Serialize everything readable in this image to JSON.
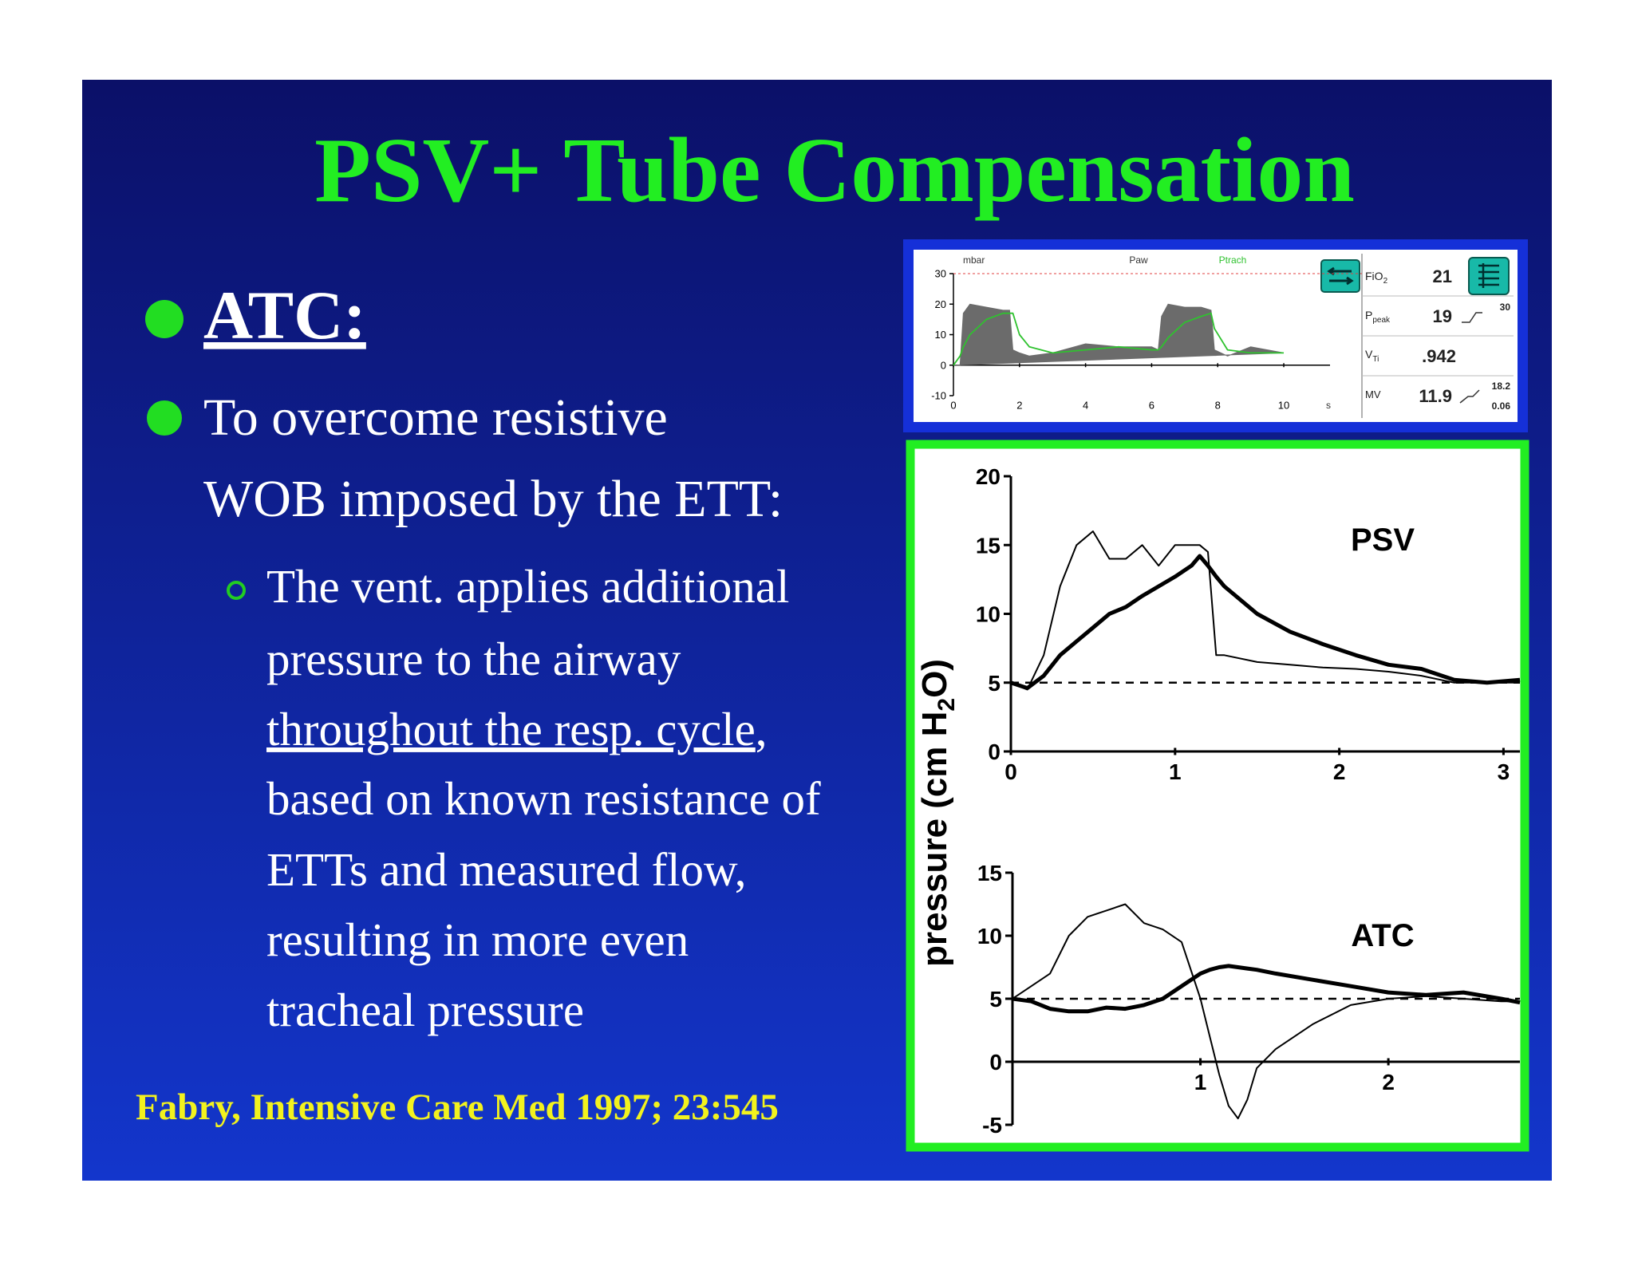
{
  "title": "PSV+ Tube Compensation",
  "bullets": [
    "ATC:",
    [
      "To overcome resistive",
      "WOB imposed by the ETT:"
    ]
  ],
  "sub_bullet": [
    "The vent. applies additional",
    "pressure to the airway",
    {
      "underlined": "throughout the resp. cycle",
      "after": ","
    },
    "based on known resistance of",
    "ETTs and measured flow,",
    "resulting in more even",
    "tracheal pressure"
  ],
  "citation": "Fabry, Intensive Care Med 1997; 23:545",
  "y_axis_label": {
    "before": "pressure (cm H",
    "sub": "2",
    "after": "O)"
  },
  "monitor": {
    "readouts": [
      {
        "label": "FiO",
        "sub": "2",
        "value": "21"
      },
      {
        "label": "P",
        "sub": "peak",
        "value": "19",
        "limit": "30"
      },
      {
        "label": "V",
        "sub": "Ti",
        "value": ".942"
      },
      {
        "label": "MV",
        "value": "11.9",
        "limit": "18.2",
        "limit_low": "0.06"
      }
    ]
  },
  "chart_data": [
    {
      "type": "line",
      "y_unit": "mbar",
      "x_unit": "s",
      "x": [
        0,
        0.2,
        0.3,
        0.5,
        1,
        1.5,
        1.7,
        1.8,
        2,
        2.3,
        3,
        4,
        5,
        6,
        6.2,
        6.3,
        6.5,
        7,
        7.5,
        7.8,
        7.9,
        8.3,
        9,
        10
      ],
      "series": [
        {
          "name": "Paw",
          "type": "area",
          "color": "#6b6b6b",
          "values": [
            0,
            0,
            17,
            20,
            19,
            18,
            18,
            5,
            4,
            3,
            4,
            7,
            6,
            6,
            5,
            16,
            20,
            19,
            19,
            18,
            5,
            3,
            6,
            4
          ]
        },
        {
          "name": "Ptrach",
          "type": "line",
          "color": "#2fc22f",
          "values": [
            0,
            3,
            6,
            10,
            15,
            17,
            17,
            17,
            10,
            6,
            4,
            5,
            6,
            5,
            5,
            6,
            9,
            14,
            16,
            17,
            12,
            5,
            4,
            4
          ]
        }
      ],
      "alarm_line": 30,
      "xlim": [
        0,
        11.4
      ],
      "ylim": [
        -10,
        30
      ],
      "xticks": [
        0,
        2,
        4,
        6,
        8,
        10
      ],
      "yticks": [
        30,
        20,
        10,
        0,
        -10
      ]
    },
    {
      "type": "line",
      "title": "PSV",
      "x": [
        0,
        0.1,
        0.2,
        0.3,
        0.4,
        0.5,
        0.6,
        0.7,
        0.8,
        0.9,
        1.0,
        1.1,
        1.15,
        1.2,
        1.25,
        1.3,
        1.5,
        1.7,
        1.9,
        2.1,
        2.3,
        2.5,
        2.7,
        2.9,
        3.1
      ],
      "series": [
        {
          "type": "line",
          "color": "#000000",
          "values": [
            5,
            4.5,
            7,
            12,
            15,
            16,
            14,
            14,
            15,
            13.5,
            15,
            15,
            15,
            14.5,
            7,
            7,
            6.5,
            6.3,
            6.1,
            6,
            5.8,
            5.5,
            5,
            5,
            5
          ]
        },
        {
          "type": "line",
          "color": "#000000",
          "values": [
            5,
            4.6,
            5.5,
            7,
            8,
            9,
            10,
            10.5,
            11.3,
            12,
            12.7,
            13.5,
            14.2,
            13.5,
            12.7,
            12,
            10,
            8.7,
            7.8,
            7,
            6.3,
            6,
            5.2,
            5,
            5.2
          ]
        }
      ],
      "hline": 5,
      "xlim": [
        0,
        3.1
      ],
      "ylim": [
        0,
        20
      ],
      "xticks": [
        0,
        1,
        2,
        3
      ],
      "yticks": [
        20,
        15,
        10,
        5,
        0
      ]
    },
    {
      "type": "line",
      "title": "ATC",
      "x": [
        0,
        0.1,
        0.2,
        0.3,
        0.4,
        0.5,
        0.6,
        0.7,
        0.8,
        0.9,
        1.0,
        1.05,
        1.1,
        1.15,
        1.2,
        1.25,
        1.3,
        1.4,
        1.6,
        1.8,
        2.0,
        2.2,
        2.4,
        2.6,
        2.7
      ],
      "series": [
        {
          "type": "line",
          "color": "#000000",
          "values": [
            5,
            6,
            7,
            10,
            11.5,
            12,
            12.5,
            11,
            10.5,
            9.5,
            5,
            2,
            -1,
            -3.5,
            -4.5,
            -3,
            -0.5,
            1,
            3,
            4.5,
            5,
            5.2,
            5,
            4.8,
            4.8
          ]
        },
        {
          "type": "line",
          "color": "#000000",
          "values": [
            5,
            4.8,
            4.2,
            4,
            4,
            4.3,
            4.2,
            4.5,
            5,
            6,
            7,
            7.3,
            7.5,
            7.6,
            7.5,
            7.4,
            7.3,
            7,
            6.5,
            6,
            5.5,
            5.3,
            5.5,
            5,
            4.7
          ]
        }
      ],
      "hline": 5,
      "xlim": [
        0,
        2.7
      ],
      "ylim": [
        -5,
        15
      ],
      "xticks": [
        1,
        2
      ],
      "yticks": [
        15,
        10,
        5,
        0,
        -5
      ]
    }
  ]
}
